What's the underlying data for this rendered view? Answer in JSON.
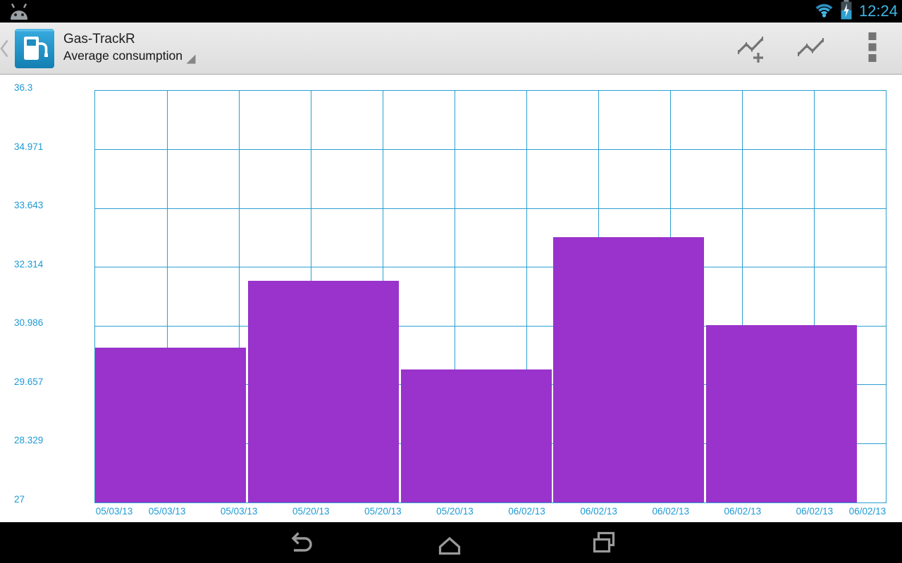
{
  "status_bar": {
    "time": "12:24",
    "left_icon": "android-logo-icon",
    "right_icons": [
      "wifi-icon",
      "battery-charging-icon"
    ]
  },
  "action_bar": {
    "title": "Gas-TrackR",
    "subtitle": "Average consumption",
    "subtitle_is_dropdown": true,
    "actions": [
      {
        "name": "add-chart-entry",
        "icon": "line-chart-plus-icon"
      },
      {
        "name": "show-chart",
        "icon": "line-chart-icon"
      },
      {
        "name": "overflow-menu",
        "icon": "overflow-menu-icon"
      }
    ]
  },
  "chart_data": {
    "type": "bar",
    "title": "Average consumption",
    "x_tick_labels": [
      "05/03/13",
      "05/03/13",
      "05/03/13",
      "05/20/13",
      "05/20/13",
      "05/20/13",
      "06/02/13",
      "06/02/13",
      "06/02/13",
      "06/02/13",
      "06/02/13",
      "06/02/13"
    ],
    "y_tick_labels": [
      "27",
      "28.329",
      "29.657",
      "30.986",
      "32.314",
      "33.643",
      "34.971",
      "36.3"
    ],
    "values": [
      30.5,
      32.0,
      30.0,
      33.0,
      31.0
    ],
    "ylim": [
      27,
      36.3
    ],
    "grid": true,
    "legend": false,
    "bar_color": "#9933cc",
    "grid_color": "#2b9fd2",
    "label_color": "#1d9ad4"
  },
  "nav_bar": {
    "icons": [
      "back-nav-icon",
      "home-nav-icon",
      "recents-nav-icon"
    ]
  }
}
